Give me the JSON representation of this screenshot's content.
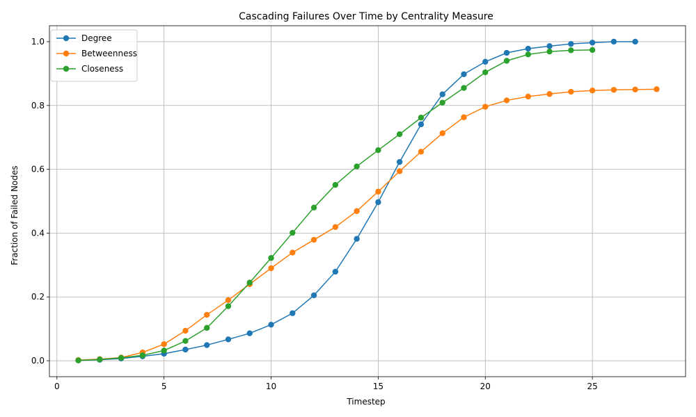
{
  "chart_data": {
    "type": "line",
    "title": "Cascading Failures Over Time by Centrality Measure",
    "xlabel": "Timestep",
    "ylabel": "Fraction of Failed Nodes",
    "xlim": [
      -0.35,
      29.35
    ],
    "ylim": [
      -0.05,
      1.05
    ],
    "xticks": [
      0,
      5,
      10,
      15,
      20,
      25
    ],
    "yticks": [
      0.0,
      0.2,
      0.4,
      0.6,
      0.8,
      1.0
    ],
    "ytick_labels": [
      "0.0",
      "0.2",
      "0.4",
      "0.6",
      "0.8",
      "1.0"
    ],
    "grid": true,
    "legend_position": "top-left",
    "series": [
      {
        "name": "Degree",
        "color": "#1f77b4",
        "x": [
          1,
          2,
          3,
          4,
          5,
          6,
          7,
          8,
          9,
          10,
          11,
          12,
          13,
          14,
          15,
          16,
          17,
          18,
          19,
          20,
          21,
          22,
          23,
          24,
          25,
          26,
          27
        ],
        "values": [
          0.001,
          0.003,
          0.007,
          0.014,
          0.022,
          0.035,
          0.049,
          0.067,
          0.086,
          0.113,
          0.149,
          0.205,
          0.279,
          0.382,
          0.497,
          0.623,
          0.741,
          0.835,
          0.898,
          0.937,
          0.965,
          0.978,
          0.986,
          0.993,
          0.997,
          1.0,
          1.0
        ]
      },
      {
        "name": "Betweenness",
        "color": "#ff7f0e",
        "x": [
          1,
          2,
          3,
          4,
          5,
          6,
          7,
          8,
          9,
          10,
          11,
          12,
          13,
          14,
          15,
          16,
          17,
          18,
          19,
          20,
          21,
          22,
          23,
          24,
          25,
          26,
          27,
          28
        ],
        "values": [
          0.002,
          0.005,
          0.01,
          0.026,
          0.052,
          0.094,
          0.144,
          0.19,
          0.24,
          0.29,
          0.339,
          0.379,
          0.419,
          0.469,
          0.53,
          0.594,
          0.655,
          0.713,
          0.763,
          0.796,
          0.816,
          0.828,
          0.836,
          0.843,
          0.847,
          0.849,
          0.85,
          0.851
        ]
      },
      {
        "name": "Closeness",
        "color": "#2ca02c",
        "x": [
          1,
          2,
          3,
          4,
          5,
          6,
          7,
          8,
          9,
          10,
          11,
          12,
          13,
          14,
          15,
          16,
          17,
          18,
          19,
          20,
          21,
          22,
          23,
          24,
          25
        ],
        "values": [
          0.001,
          0.004,
          0.009,
          0.017,
          0.032,
          0.062,
          0.103,
          0.171,
          0.245,
          0.322,
          0.401,
          0.48,
          0.551,
          0.609,
          0.66,
          0.71,
          0.762,
          0.809,
          0.855,
          0.904,
          0.94,
          0.96,
          0.969,
          0.973,
          0.974
        ]
      }
    ]
  }
}
